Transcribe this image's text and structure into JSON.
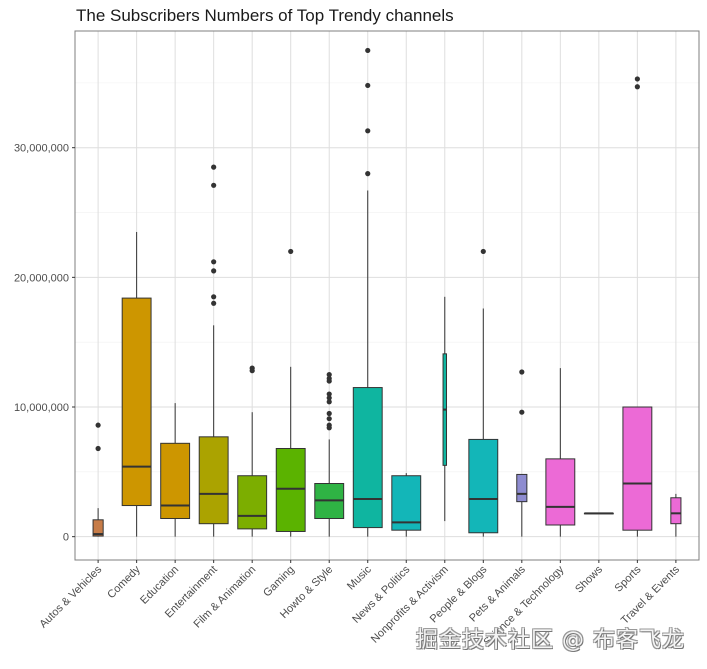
{
  "chart_data": {
    "type": "box",
    "title": "The Subscribers Numbers of Top Trendy channels",
    "xlabel": "",
    "ylabel": "",
    "ylim": [
      -1800000,
      39000000
    ],
    "grid": true,
    "legend": "none",
    "y_ticks": [
      0,
      10000000,
      20000000,
      30000000
    ],
    "y_tick_labels": [
      "0",
      "10,000,000",
      "20,000,000",
      "30,000,000"
    ],
    "categories": [
      "Autos & Vehicles",
      "Comedy",
      "Education",
      "Entertainment",
      "Film & Animation",
      "Gaming",
      "Howto & Style",
      "Music",
      "News & Politics",
      "Nonprofits & Activism",
      "People & Blogs",
      "Pets & Animals",
      "Science & Technology",
      "Shows",
      "Sports",
      "Travel & Events"
    ],
    "boxes": [
      {
        "category": "Autos & Vehicles",
        "color": "#C77C48",
        "lower": 0,
        "q1": 50000,
        "median": 200000,
        "q3": 1300000,
        "upper": 2200000,
        "outliers": [
          8600000,
          6800000
        ]
      },
      {
        "category": "Comedy",
        "color": "#CD9600",
        "lower": 0,
        "q1": 2400000,
        "median": 5400000,
        "q3": 18400000,
        "upper": 23500000,
        "outliers": []
      },
      {
        "category": "Education",
        "color": "#CD9600",
        "lower": 0,
        "q1": 1400000,
        "median": 2400000,
        "q3": 7200000,
        "upper": 10300000,
        "outliers": []
      },
      {
        "category": "Entertainment",
        "color": "#ABA300",
        "lower": 0,
        "q1": 1000000,
        "median": 3300000,
        "q3": 7700000,
        "upper": 16300000,
        "outliers": [
          28500000,
          27100000,
          21200000,
          20500000,
          18500000,
          18000000
        ]
      },
      {
        "category": "Film & Animation",
        "color": "#7CAE00",
        "lower": 0,
        "q1": 600000,
        "median": 1600000,
        "q3": 4700000,
        "upper": 9600000,
        "outliers": [
          13000000,
          12800000
        ]
      },
      {
        "category": "Gaming",
        "color": "#5BB300",
        "lower": 0,
        "q1": 400000,
        "median": 3700000,
        "q3": 6800000,
        "upper": 13100000,
        "outliers": [
          22000000
        ]
      },
      {
        "category": "Howto & Style",
        "color": "#2FB344",
        "lower": 0,
        "q1": 1400000,
        "median": 2800000,
        "q3": 4100000,
        "upper": 7500000,
        "outliers": [
          12500000,
          12200000,
          12000000,
          11000000,
          10700000,
          10400000,
          9500000,
          9100000,
          8600000,
          8400000
        ]
      },
      {
        "category": "Music",
        "color": "#0FB5A0",
        "lower": 0,
        "q1": 700000,
        "median": 2900000,
        "q3": 11500000,
        "upper": 26700000,
        "outliers": [
          37500000,
          34800000,
          31300000,
          28000000
        ]
      },
      {
        "category": "News & Politics",
        "color": "#13B6B8",
        "lower": 0,
        "q1": 500000,
        "median": 1100000,
        "q3": 4700000,
        "upper": 4900000,
        "outliers": []
      },
      {
        "category": "Nonprofits & Activism",
        "color": "#0FB5A0",
        "lower": 1200000,
        "q1": 5500000,
        "median": 9800000,
        "q3": 14100000,
        "upper": 18500000,
        "outliers": []
      },
      {
        "category": "People & Blogs",
        "color": "#13B6B8",
        "lower": 0,
        "q1": 300000,
        "median": 2900000,
        "q3": 7500000,
        "upper": 17600000,
        "outliers": [
          22000000
        ]
      },
      {
        "category": "Pets & Animals",
        "color": "#8E8CD0",
        "lower": 0,
        "q1": 2700000,
        "median": 3300000,
        "q3": 4800000,
        "upper": 4800000,
        "outliers": [
          12700000,
          9600000
        ]
      },
      {
        "category": "Science & Technology",
        "color": "#EC6AD6",
        "lower": 0,
        "q1": 900000,
        "median": 2300000,
        "q3": 6000000,
        "upper": 13000000,
        "outliers": []
      },
      {
        "category": "Shows",
        "color": "#EC6AD6",
        "lower": 1800000,
        "q1": 1800000,
        "median": 1800000,
        "q3": 1800000,
        "upper": 1800000,
        "outliers": []
      },
      {
        "category": "Sports",
        "color": "#EC6AD6",
        "lower": 0,
        "q1": 500000,
        "median": 4100000,
        "q3": 10000000,
        "upper": 10000000,
        "outliers": [
          35300000,
          34700000
        ]
      },
      {
        "category": "Travel & Events",
        "color": "#EC6AD6",
        "lower": 0,
        "q1": 1000000,
        "median": 1800000,
        "q3": 3000000,
        "upper": 3300000,
        "outliers": []
      }
    ]
  },
  "watermark": "掘金技术社区 @ 布客飞龙"
}
